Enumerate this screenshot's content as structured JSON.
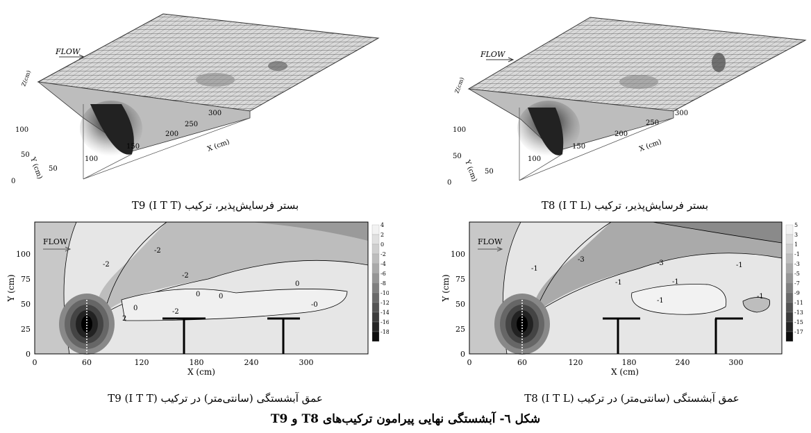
{
  "panels": {
    "tl": {
      "flow": "FLOW",
      "zlabel": "Z(cm)",
      "xlabel": "X (cm)",
      "ylabel": "Y (cm)",
      "xticks": [
        "50",
        "100",
        "150",
        "200",
        "250",
        "300"
      ],
      "yticks": [
        "0",
        "50",
        "100"
      ]
    },
    "tr": {
      "flow": "FLOW",
      "zlabel": "Z(cm)",
      "xlabel": "X (cm)",
      "ylabel": "Y (cm)",
      "xticks": [
        "50",
        "100",
        "150",
        "200",
        "250",
        "300"
      ],
      "yticks": [
        "0",
        "50",
        "100"
      ]
    },
    "bl": {
      "flow": "FLOW",
      "xlabel": "X (cm)",
      "ylabel": "Y (cm)",
      "xticks": [
        "0",
        "60",
        "120",
        "180",
        "240",
        "300"
      ],
      "yticks": [
        "0",
        "25",
        "50",
        "75",
        "100"
      ],
      "legend": [
        "4",
        "2",
        "0",
        "-2",
        "-4",
        "-6",
        "-8",
        "-10",
        "-12",
        "-14",
        "-16",
        "-18"
      ],
      "contours": [
        "-2",
        "-2",
        "-2",
        "0",
        "0",
        "2",
        "-2",
        "0",
        "-0",
        "0"
      ]
    },
    "br": {
      "flow": "FLOW",
      "xlabel": "X (cm)",
      "ylabel": "Y (cm)",
      "xticks": [
        "0",
        "60",
        "120",
        "180",
        "240",
        "300"
      ],
      "yticks": [
        "0",
        "25",
        "50",
        "75",
        "100"
      ],
      "legend": [
        "5",
        "3",
        "1",
        "-1",
        "-3",
        "-5",
        "-7",
        "-9",
        "-11",
        "-13",
        "-15",
        "-17"
      ],
      "contours": [
        "-3",
        "-1",
        "-3",
        "-1",
        "-1",
        "-1",
        "-1",
        "-1"
      ]
    }
  },
  "captions": {
    "tl": "بستر فرسایش‌پذیر، ترکیب (I T T) T9",
    "tr": "بستر فرسایش‌پذیر، ترکیب (I T L) T8",
    "bl": "عمق آبشستگی (سانتی‌متر) در ترکیب (I T T) T9",
    "br": "عمق آبشستگی (سانتی‌متر) در ترکیب (I T L) T8",
    "figure": "شکل ٦- آبشستگی نهایی پیرامون ترکیب‌های T8 و T9"
  },
  "colors": {
    "dark": "#000000",
    "light": "#e6e6e6",
    "grid": "#555555"
  }
}
